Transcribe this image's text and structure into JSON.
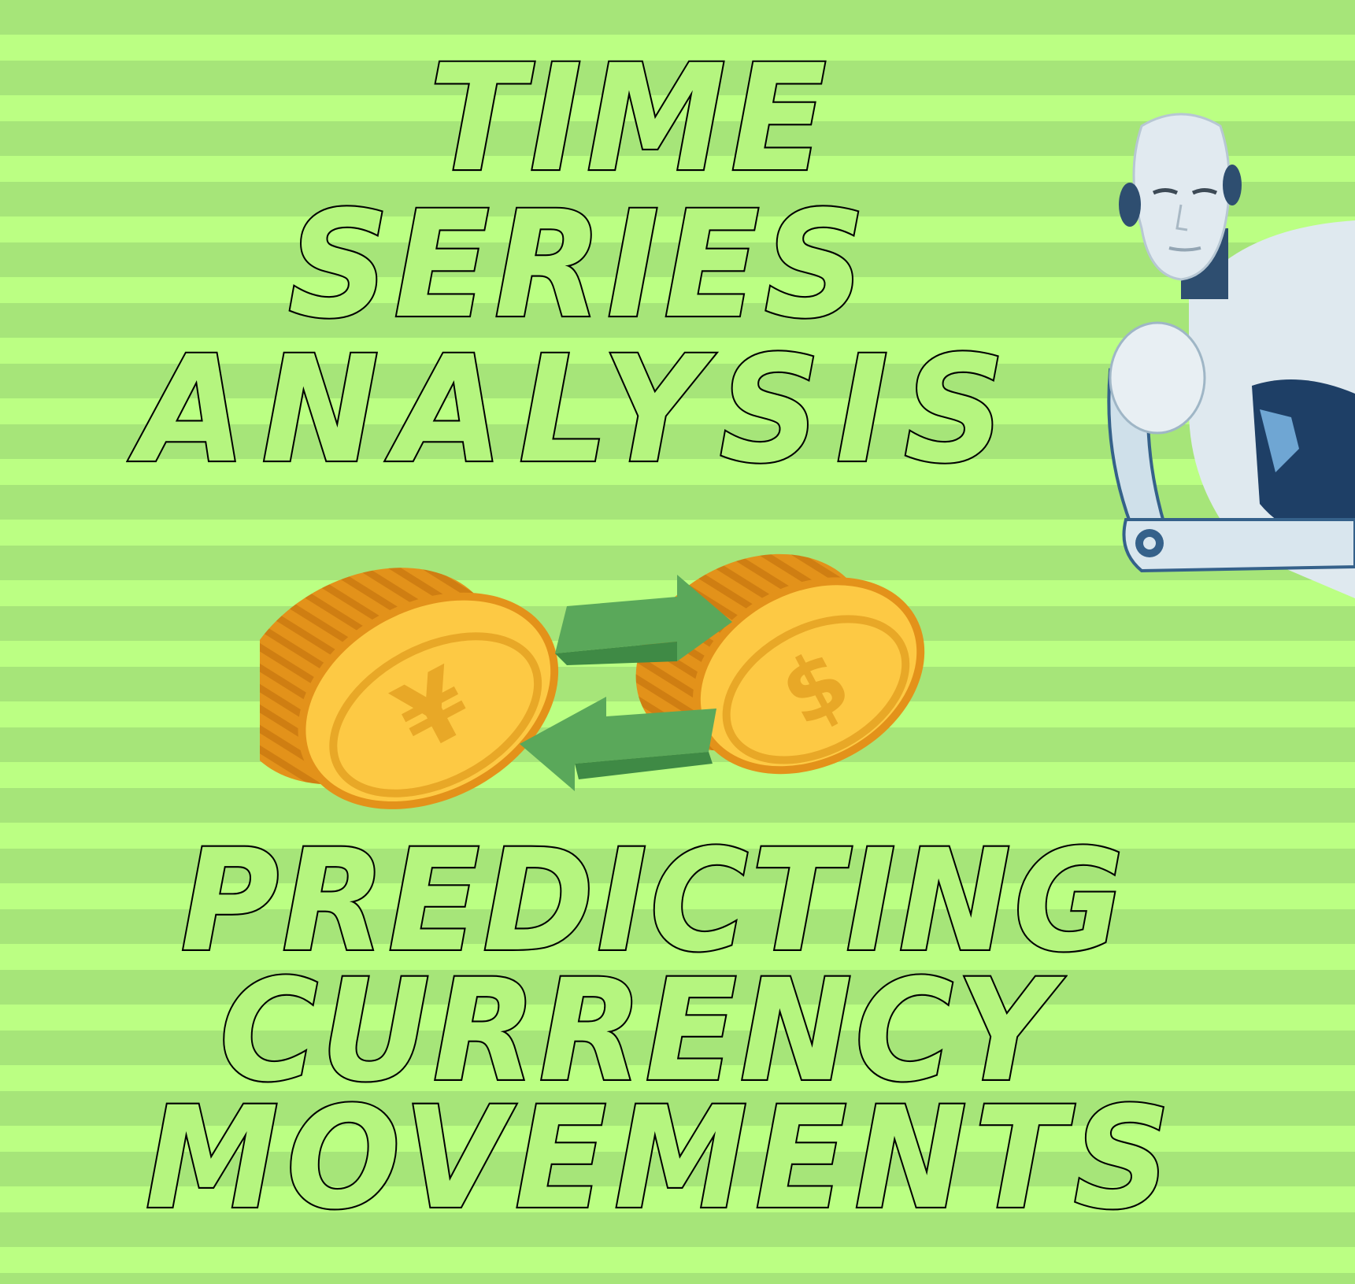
{
  "title": {
    "line1": "TIME",
    "line2": "SERIES",
    "line3": "ANALYSIS"
  },
  "subtitle": {
    "line1": "PREDICTING",
    "line2": "CURRENCY",
    "line3": "MOVEMENTS"
  },
  "coins": {
    "left_symbol": "¥",
    "right_symbol": "$"
  },
  "icons": [
    "yen-coin-icon",
    "dollar-coin-icon",
    "exchange-arrows-icon",
    "robot-illustration"
  ],
  "colors": {
    "stripe_dark": "#a6e579",
    "stripe_light": "#bbff83",
    "text_fill": "#b5f57f",
    "text_outline": "#000000",
    "coin_face": "#fdc944",
    "coin_edge": "#e3921a",
    "arrow": "#5aa85a"
  }
}
